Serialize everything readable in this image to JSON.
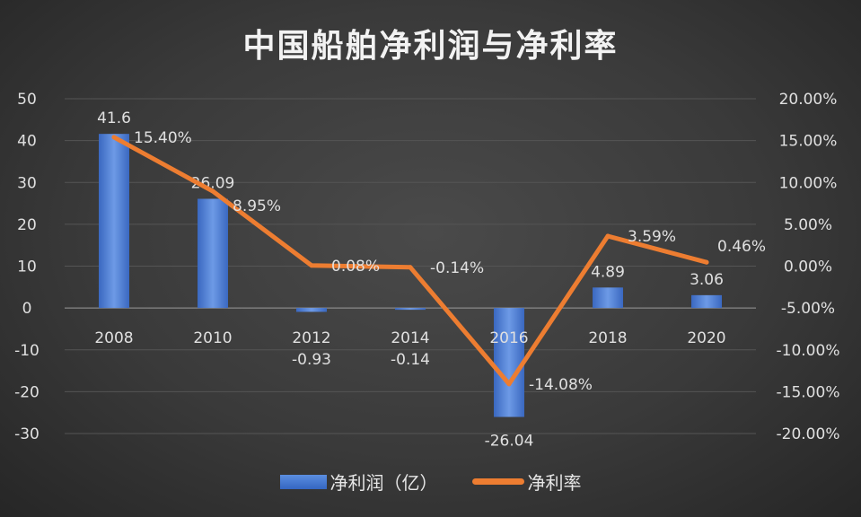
{
  "chart_data": {
    "type": "bar+line",
    "title": "中国船舶净利润与净利率",
    "categories": [
      "2008",
      "2010",
      "2012",
      "2014",
      "2016",
      "2018",
      "2020"
    ],
    "series": [
      {
        "name": "净利润（亿）",
        "type": "bar",
        "axis": "left",
        "color": "#4472c4",
        "values": [
          41.6,
          26.09,
          -0.93,
          -0.14,
          -26.04,
          4.89,
          3.06
        ],
        "labels": [
          "41.6",
          "26.09",
          "-0.93",
          "-0.14",
          "-26.04",
          "4.89",
          "3.06"
        ]
      },
      {
        "name": "净利率",
        "type": "line",
        "axis": "right",
        "color": "#ed7d31",
        "values": [
          15.4,
          8.95,
          0.08,
          -0.14,
          -14.08,
          3.59,
          0.46
        ],
        "labels": [
          "15.40%",
          "8.95%",
          "0.08%",
          "-0.14%",
          "-14.08%",
          "3.59%",
          "0.46%"
        ]
      }
    ],
    "left_axis": {
      "ylim": [
        -30,
        50
      ],
      "ticks": [
        "50",
        "40",
        "30",
        "20",
        "10",
        "0",
        "-10",
        "-20",
        "-30"
      ]
    },
    "right_axis": {
      "ylim": [
        -20,
        20
      ],
      "unit": "%",
      "ticks": [
        "20.00%",
        "15.00%",
        "10.00%",
        "5.00%",
        "0.00%",
        "-5.00%",
        "-10.00%",
        "-15.00%",
        "-20.00%"
      ]
    },
    "grid": true,
    "legend": "bottom"
  }
}
